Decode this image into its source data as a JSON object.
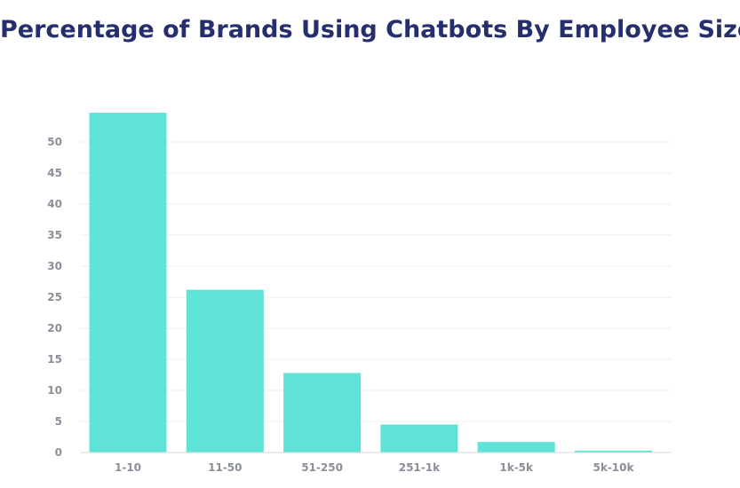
{
  "chart_data": {
    "type": "bar",
    "title": "Percentage of Brands Using Chatbots By Employee Size",
    "xlabel": "",
    "ylabel": "",
    "categories": [
      "1-10",
      "11-50",
      "51-250",
      "251-1k",
      "1k-5k",
      "5k-10k"
    ],
    "values": [
      54.7,
      26.2,
      12.8,
      4.5,
      1.7,
      0.3
    ],
    "ylim": [
      0,
      55
    ],
    "yticks": [
      0,
      5,
      10,
      15,
      20,
      25,
      30,
      35,
      40,
      45,
      50
    ],
    "grid": true,
    "bar_color": "#5ee3d6",
    "title_color": "#262f6e"
  }
}
